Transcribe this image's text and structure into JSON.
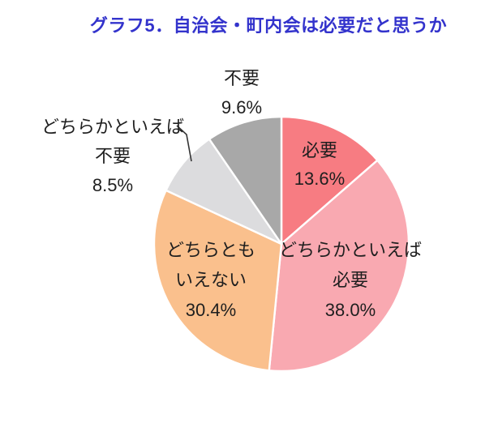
{
  "title": {
    "text": "グラフ5．自治会・町内会は必要だと思うか",
    "color": "#3333CC"
  },
  "chart_data": {
    "type": "pie",
    "title": "グラフ5．自治会・町内会は必要だと思うか",
    "start_angle_deg": 0,
    "direction": "clockwise",
    "total_percent": 100.1,
    "slices": [
      {
        "label": "必要",
        "value": 13.6,
        "color": "#F77C82",
        "label_lines": [
          "必要",
          "13.6%"
        ],
        "label_placement": "inside"
      },
      {
        "label": "どちらかといえば必要",
        "value": 38.0,
        "color": "#F9A9B1",
        "label_lines": [
          "どちらかといえば",
          "必要",
          "38.0%"
        ],
        "label_placement": "inside"
      },
      {
        "label": "どちらともいえない",
        "value": 30.4,
        "color": "#FAC08D",
        "label_lines": [
          "どちらとも",
          "いえない",
          "30.4%"
        ],
        "label_placement": "inside"
      },
      {
        "label": "どちらかといえば不要",
        "value": 8.5,
        "color": "#DCDCDE",
        "label_lines": [
          "どちらかといえば",
          "不要",
          "8.5%"
        ],
        "label_placement": "outside-left-with-leader"
      },
      {
        "label": "不要",
        "value": 9.6,
        "color": "#A8A8A8",
        "label_lines": [
          "不要",
          "9.6%"
        ],
        "label_placement": "outside-top"
      }
    ],
    "label_text_color": "#1f1f1f",
    "slice_border_color": "#FFFFFF",
    "leader_line_color": "#333333"
  }
}
